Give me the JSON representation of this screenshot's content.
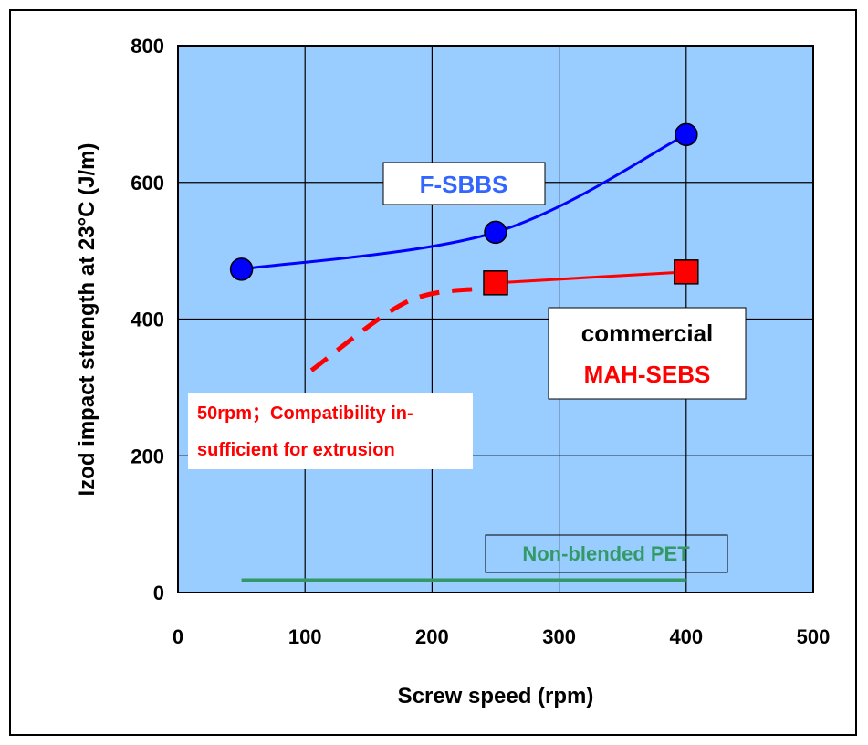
{
  "chart_data": {
    "type": "line",
    "xlabel": "Screw speed  (rpm)",
    "ylabel": "Izod impact strength at 23°C (J/m)",
    "xlim": [
      0,
      500
    ],
    "ylim": [
      0,
      800
    ],
    "xticks": [
      0,
      100,
      200,
      300,
      400,
      500
    ],
    "yticks": [
      0,
      200,
      400,
      600,
      800
    ],
    "grid": true,
    "plot_background": "#99CCFF",
    "series": [
      {
        "name": "F-SBBS",
        "color": "#0000FF",
        "marker": "circle",
        "x": [
          50,
          250,
          400
        ],
        "y": [
          473,
          527,
          670
        ]
      },
      {
        "name": "commercial MAH-SEBS",
        "color": "#FF0000",
        "marker": "square",
        "x": [
          250,
          400
        ],
        "y": [
          453,
          469
        ],
        "dashed_extension": {
          "x": [
            105,
            180,
            240
          ],
          "y": [
            325,
            425,
            445
          ]
        }
      },
      {
        "name": "Non-blended PET",
        "color": "#339966",
        "marker": "none",
        "x": [
          50,
          400
        ],
        "y": [
          18,
          18
        ]
      }
    ],
    "annotations": {
      "fsbbs": "F-SBBS",
      "commercial": "commercial",
      "mah_sebs": "MAH-SEBS",
      "note_line1": "50rpm；Compatibility in-",
      "note_line2": "sufficient for extrusion",
      "pet": "Non-blended PET"
    }
  }
}
